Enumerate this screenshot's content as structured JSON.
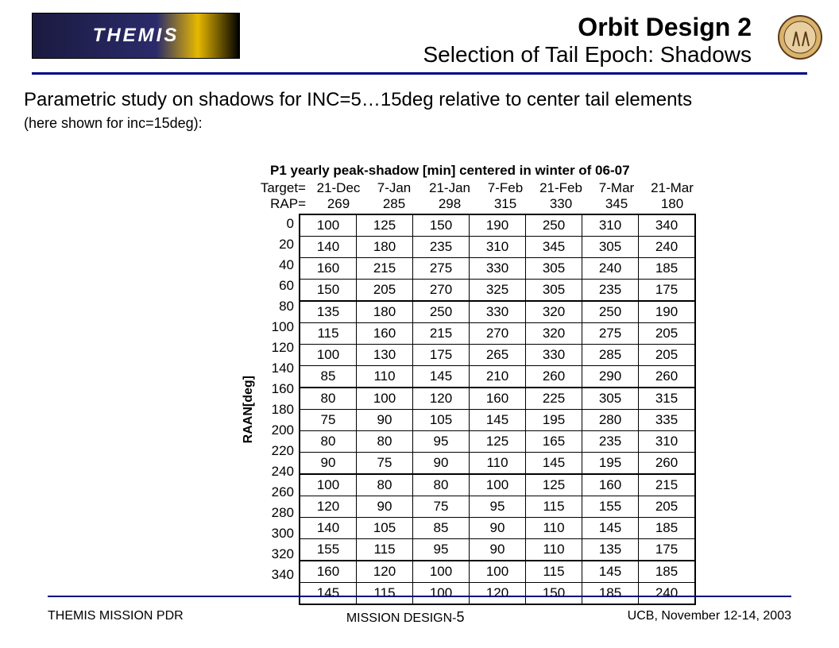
{
  "header": {
    "logo_text": "THEMIS",
    "title_line1": "Orbit Design 2",
    "title_line2": "Selection of Tail Epoch: Shadows"
  },
  "body": {
    "para1": "Parametric study on shadows for INC=5…15deg relative to center tail elements",
    "para2": "(here shown for inc=15deg):"
  },
  "table": {
    "title": "P1 yearly peak-shadow [min] centered in winter of 06-07",
    "target_label": "Target=",
    "rap_label": "RAP=",
    "y_axis_label": "RAAN[deg]",
    "target_headers": [
      "21-Dec",
      "7-Jan",
      "21-Jan",
      "7-Feb",
      "21-Feb",
      "7-Mar",
      "21-Mar"
    ],
    "rap_headers": [
      "269",
      "285",
      "298",
      "315",
      "330",
      "345",
      "180"
    ],
    "row_labels": [
      "0",
      "20",
      "40",
      "60",
      "80",
      "100",
      "120",
      "140",
      "160",
      "180",
      "200",
      "220",
      "240",
      "260",
      "280",
      "300",
      "320",
      "340"
    ],
    "rows": [
      [
        "100",
        "125",
        "150",
        "190",
        "250",
        "310",
        "340"
      ],
      [
        "140",
        "180",
        "235",
        "310",
        "345",
        "305",
        "240"
      ],
      [
        "160",
        "215",
        "275",
        "330",
        "305",
        "240",
        "185"
      ],
      [
        "150",
        "205",
        "270",
        "325",
        "305",
        "235",
        "175"
      ],
      [
        "135",
        "180",
        "250",
        "330",
        "320",
        "250",
        "190"
      ],
      [
        "115",
        "160",
        "215",
        "270",
        "320",
        "275",
        "205"
      ],
      [
        "100",
        "130",
        "175",
        "265",
        "330",
        "285",
        "205"
      ],
      [
        "85",
        "110",
        "145",
        "210",
        "260",
        "290",
        "260"
      ],
      [
        "80",
        "100",
        "120",
        "160",
        "225",
        "305",
        "315"
      ],
      [
        "75",
        "90",
        "105",
        "145",
        "195",
        "280",
        "335"
      ],
      [
        "80",
        "80",
        "95",
        "125",
        "165",
        "235",
        "310"
      ],
      [
        "90",
        "75",
        "90",
        "110",
        "145",
        "195",
        "260"
      ],
      [
        "100",
        "80",
        "80",
        "100",
        "125",
        "160",
        "215"
      ],
      [
        "120",
        "90",
        "75",
        "95",
        "115",
        "155",
        "205"
      ],
      [
        "140",
        "105",
        "85",
        "90",
        "110",
        "145",
        "185"
      ],
      [
        "155",
        "115",
        "95",
        "90",
        "110",
        "135",
        "175"
      ],
      [
        "160",
        "120",
        "100",
        "100",
        "115",
        "145",
        "185"
      ],
      [
        "145",
        "115",
        "100",
        "120",
        "150",
        "185",
        "240"
      ]
    ],
    "thick_rows": [
      0,
      4,
      8,
      12,
      16
    ]
  },
  "footer": {
    "left": "THEMIS MISSION PDR",
    "mid_prefix": "MISSION DESIGN-",
    "page_number": "5",
    "right": "UCB, November 12-14, 2003"
  },
  "colors": {
    "rule": "#000080",
    "text": "#000000",
    "background": "#ffffff"
  }
}
